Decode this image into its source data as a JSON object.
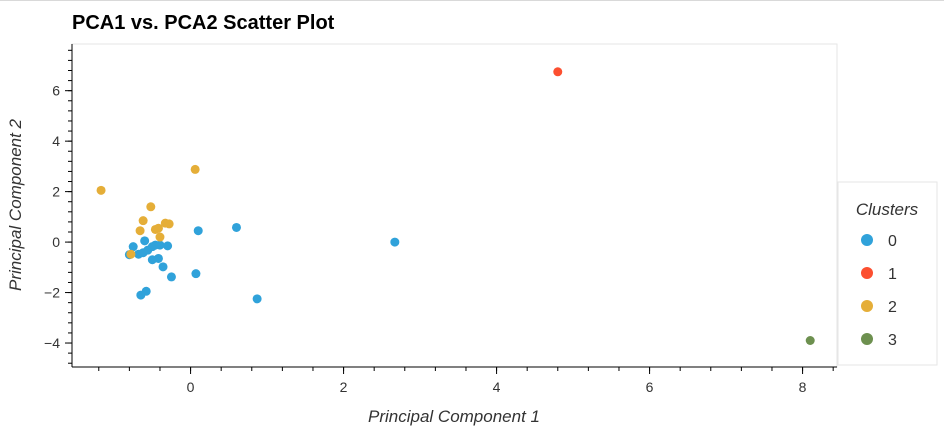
{
  "chart_data": {
    "type": "scatter",
    "title": "PCA1 vs. PCA2 Scatter Plot",
    "xlabel": "Principal Component 1",
    "ylabel": "Principal Component 2",
    "xlim": [
      -1.55,
      8.45
    ],
    "ylim": [
      -4.95,
      7.85
    ],
    "xticks": [
      0,
      2,
      4,
      6,
      8
    ],
    "yticks": [
      -4,
      -2,
      0,
      2,
      4,
      6
    ],
    "grid": false,
    "legend": {
      "title": "Clusters",
      "placement": "right",
      "entries": [
        {
          "label": "0",
          "color": "#30a2da"
        },
        {
          "label": "1",
          "color": "#fc4f30"
        },
        {
          "label": "2",
          "color": "#e5ae38"
        },
        {
          "label": "3",
          "color": "#6d904f"
        }
      ]
    },
    "series": [
      {
        "name": "0",
        "color": "#30a2da",
        "points": [
          [
            -0.75,
            -0.18
          ],
          [
            -0.8,
            -0.5
          ],
          [
            -0.68,
            -0.48
          ],
          [
            -0.62,
            -0.42
          ],
          [
            -0.6,
            0.05
          ],
          [
            -0.56,
            -0.32
          ],
          [
            -0.5,
            -0.18
          ],
          [
            -0.46,
            -0.12
          ],
          [
            -0.4,
            -0.12
          ],
          [
            -0.3,
            -0.15
          ],
          [
            -0.5,
            -0.7
          ],
          [
            -0.42,
            -0.65
          ],
          [
            -0.36,
            -0.98
          ],
          [
            -0.25,
            -1.38
          ],
          [
            -0.65,
            -2.1
          ],
          [
            -0.58,
            -1.95
          ],
          [
            0.1,
            0.45
          ],
          [
            0.07,
            -1.25
          ],
          [
            0.6,
            0.58
          ],
          [
            0.87,
            -2.25
          ],
          [
            2.67,
            0.0
          ]
        ]
      },
      {
        "name": "1",
        "color": "#fc4f30",
        "points": [
          [
            4.8,
            6.75
          ]
        ]
      },
      {
        "name": "2",
        "color": "#e5ae38",
        "points": [
          [
            -1.17,
            2.05
          ],
          [
            0.06,
            2.88
          ],
          [
            -0.52,
            1.4
          ],
          [
            -0.62,
            0.85
          ],
          [
            -0.66,
            0.45
          ],
          [
            -0.46,
            0.5
          ],
          [
            -0.42,
            0.55
          ],
          [
            -0.33,
            0.75
          ],
          [
            -0.28,
            0.72
          ],
          [
            -0.4,
            0.2
          ],
          [
            -0.78,
            -0.48
          ]
        ]
      },
      {
        "name": "3",
        "color": "#6d904f",
        "points": [
          [
            8.1,
            -3.9
          ]
        ]
      }
    ]
  }
}
